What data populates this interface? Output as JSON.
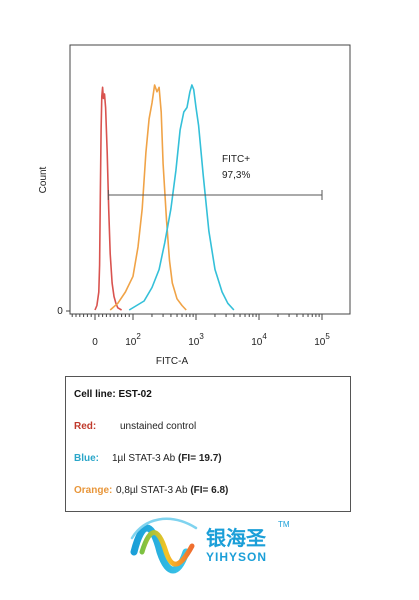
{
  "chart_data": {
    "type": "line",
    "xlabel": "FITC-A",
    "ylabel": "Count",
    "x_ticks": [
      {
        "base": "0",
        "exp": ""
      },
      {
        "base": "10",
        "exp": "2"
      },
      {
        "base": "10",
        "exp": "3"
      },
      {
        "base": "10",
        "exp": "4"
      },
      {
        "base": "10",
        "exp": "5"
      }
    ],
    "y_ticks": [
      "0"
    ],
    "x_scale": "biexponential",
    "grid": false,
    "gate": {
      "label": "FITC+",
      "value": "97,3%",
      "x_start": 35,
      "x_end": 100000
    },
    "series": [
      {
        "name": "Red",
        "color": "#d9534f",
        "x": [
          0,
          5,
          10,
          12,
          14,
          16,
          18,
          20,
          22,
          25,
          28,
          32,
          36,
          40,
          45,
          50,
          55,
          60,
          70
        ],
        "y": [
          0,
          2,
          8,
          20,
          50,
          80,
          95,
          99,
          94,
          96,
          90,
          70,
          45,
          25,
          12,
          6,
          3,
          1,
          0
        ]
      },
      {
        "name": "Orange",
        "color": "#f0a347",
        "x": [
          40,
          60,
          80,
          100,
          120,
          140,
          160,
          180,
          200,
          220,
          240,
          260,
          280,
          300,
          340,
          380,
          420,
          500,
          600,
          700
        ],
        "y": [
          0,
          3,
          8,
          15,
          28,
          45,
          70,
          85,
          92,
          100,
          97,
          99,
          88,
          65,
          40,
          22,
          12,
          5,
          2,
          0
        ]
      },
      {
        "name": "Blue",
        "color": "#34c0d9",
        "x": [
          90,
          150,
          200,
          260,
          320,
          400,
          480,
          560,
          640,
          720,
          800,
          860,
          920,
          1000,
          1100,
          1300,
          1600,
          2000,
          2600,
          3200,
          4000
        ],
        "y": [
          0,
          4,
          10,
          18,
          30,
          45,
          62,
          80,
          88,
          90,
          97,
          100,
          98,
          90,
          82,
          60,
          35,
          18,
          8,
          3,
          0
        ]
      }
    ]
  },
  "legend": {
    "title": "Cell line: EST-02",
    "rows": [
      {
        "key": "Red:",
        "key_color": "#c0392b",
        "desc": "unstained control",
        "fi": ""
      },
      {
        "key": "Blue:",
        "key_color": "#2aa6c9",
        "desc": "1µl STAT-3 Ab ",
        "fi": "(FI= 19.7)"
      },
      {
        "key": "Orange:",
        "key_color": "#e8963a",
        "desc": "0,8µl STAT-3 Ab ",
        "fi": "(FI= 6.8)"
      }
    ]
  },
  "logo": {
    "brand_cn": "银海圣",
    "tm": "TM",
    "brand_en": "YIHYSON",
    "icon": "wave-ribbon-icon"
  }
}
